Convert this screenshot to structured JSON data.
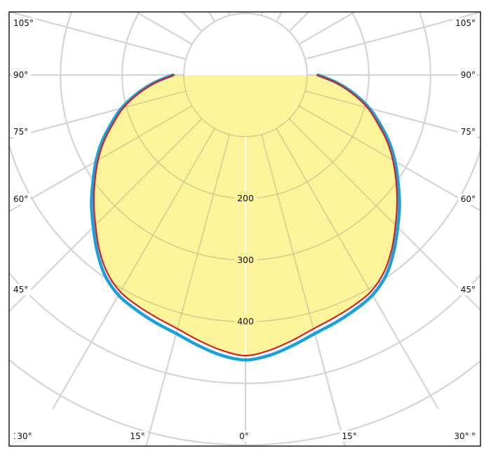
{
  "chart_data": {
    "type": "polar",
    "title": "",
    "angle_ticks": {
      "left": [
        "105°",
        "90°",
        "75°",
        "60°",
        "45°",
        "30°"
      ],
      "right": [
        "105°",
        "90°",
        "75°",
        "60°",
        "45°",
        "30°"
      ],
      "bottom": [
        "30°",
        "15°",
        "0°",
        "15°",
        "30°"
      ]
    },
    "radial_ticks": [
      "200",
      "300",
      "400"
    ],
    "radial_range": [
      0,
      500
    ],
    "grid": true,
    "angle_step_deg": 15,
    "series": [
      {
        "color": "#d42020",
        "fill": "#fdf39a",
        "angles_deg": [
          0,
          5,
          10,
          15,
          20,
          25,
          30,
          35,
          40,
          45,
          50,
          55,
          60,
          65,
          70,
          75,
          80,
          85,
          90
        ],
        "values": [
          455,
          448,
          437,
          426,
          419,
          413,
          406,
          391,
          369,
          344,
          321,
          298,
          276,
          253,
          228,
          205,
          177,
          148,
          116
        ]
      },
      {
        "color": "#1aa0dc",
        "angles_deg": [
          0,
          5,
          10,
          15,
          20,
          25,
          30,
          35,
          40,
          45,
          50,
          55,
          60,
          65,
          70,
          75,
          80,
          85,
          90
        ],
        "values": [
          462,
          456,
          445,
          434,
          427,
          420,
          412,
          397,
          374,
          349,
          326,
          302,
          280,
          257,
          232,
          208,
          180,
          150,
          118
        ]
      }
    ]
  }
}
